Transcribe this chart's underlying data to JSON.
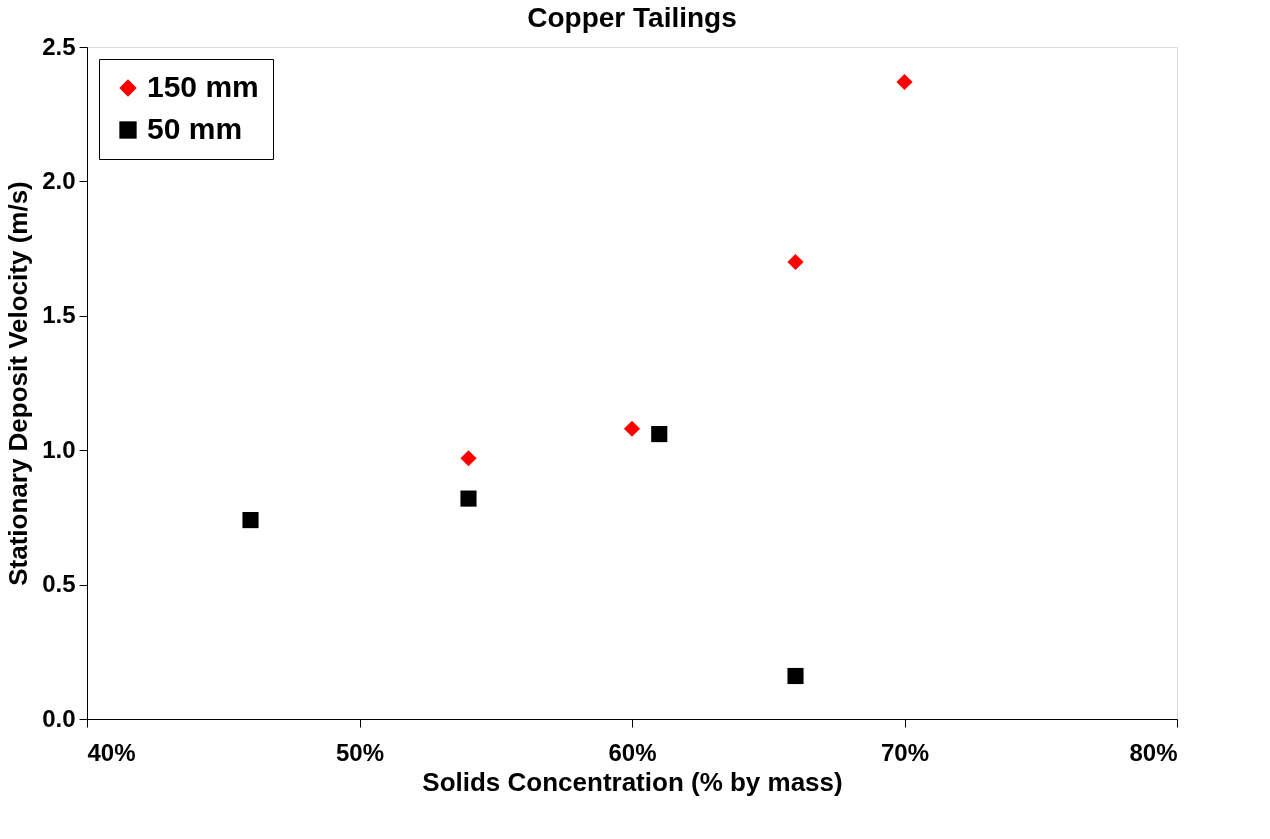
{
  "chart_data": {
    "type": "scatter",
    "title": "Copper Tailings",
    "xlabel": "Solids Concentration (% by mass)",
    "ylabel": "Stationary Deposit Velocity (m/s)",
    "xlim": [
      40,
      80
    ],
    "xticks": [
      {
        "value": 40,
        "label": "40%"
      },
      {
        "value": 50,
        "label": "50%"
      },
      {
        "value": 60,
        "label": "60%"
      },
      {
        "value": 70,
        "label": "70%"
      },
      {
        "value": 80,
        "label": "80%"
      }
    ],
    "ylim": [
      0,
      2.5
    ],
    "yticks": [
      {
        "value": 0,
        "label": "0.0"
      },
      {
        "value": 0.5,
        "label": "0.5"
      },
      {
        "value": 1,
        "label": "1.0"
      },
      {
        "value": 1.5,
        "label": "1.5"
      },
      {
        "value": 2,
        "label": "2.0"
      },
      {
        "value": 2.5,
        "label": "2.5"
      }
    ],
    "grid": false,
    "legend": "top left",
    "series": [
      {
        "name": "150 mm",
        "color": "#ff0000",
        "marker": "diamond",
        "x": [
          54,
          60,
          66,
          70
        ],
        "values": [
          0.97,
          1.08,
          1.7,
          2.37
        ]
      },
      {
        "name": "50 mm",
        "color": "#000000",
        "marker": "square",
        "x": [
          46,
          54,
          61,
          66
        ],
        "values": [
          0.74,
          0.82,
          1.06,
          0.16
        ]
      }
    ]
  }
}
